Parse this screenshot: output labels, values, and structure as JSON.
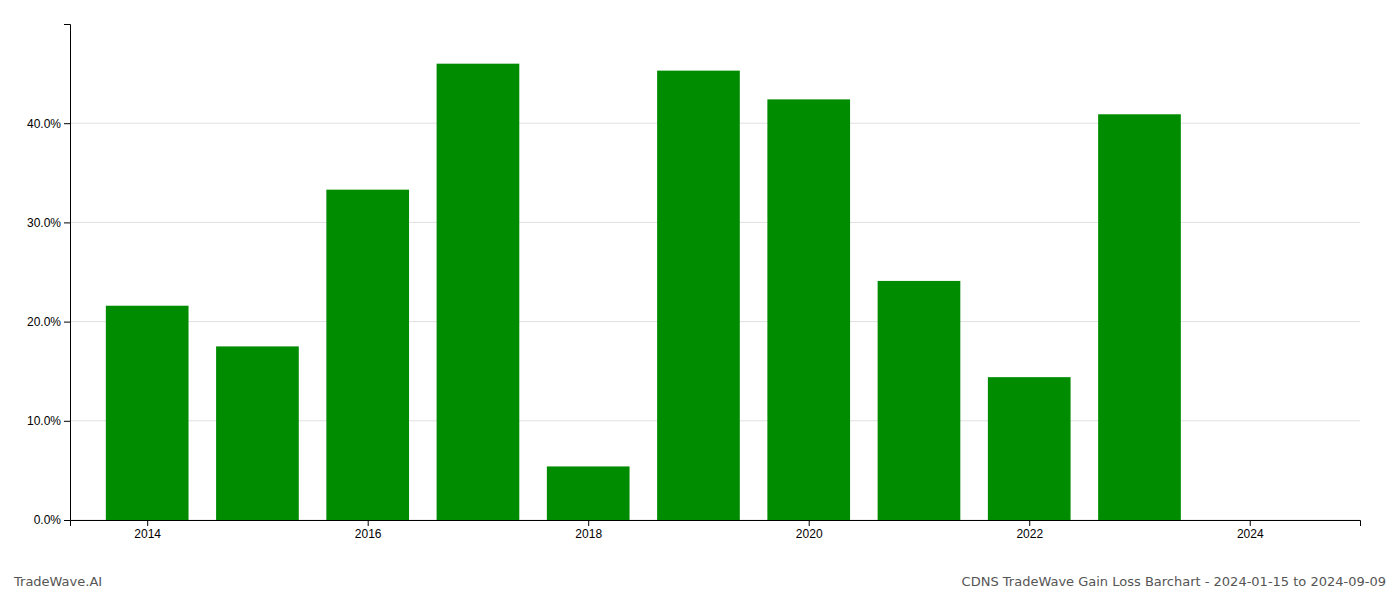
{
  "chart_data": {
    "type": "bar",
    "title": "CDNS TradeWave Gain Loss Barchart - 2024-01-15 to 2024-09-09",
    "annotations": [
      "TradeWave.AI"
    ],
    "x": [
      2014,
      2015,
      2016,
      2017,
      2018,
      2019,
      2020,
      2021,
      2022,
      2023
    ],
    "values": [
      0.216,
      0.175,
      0.333,
      0.46,
      0.054,
      0.453,
      0.424,
      0.241,
      0.144,
      0.409
    ],
    "color": "#008c00",
    "xlim": [
      2013.3,
      2025.0
    ],
    "xticks": [
      2014,
      2016,
      2018,
      2020,
      2022,
      2024
    ],
    "ylim": [
      0,
      0.5
    ],
    "yticks": [
      {
        "value": 0.0,
        "label": "0.0%"
      },
      {
        "value": 0.1,
        "label": "10.0%"
      },
      {
        "value": 0.2,
        "label": "20.0%"
      },
      {
        "value": 0.3,
        "label": "30.0%"
      },
      {
        "value": 0.4,
        "label": "40.0%"
      }
    ],
    "grid": true
  }
}
